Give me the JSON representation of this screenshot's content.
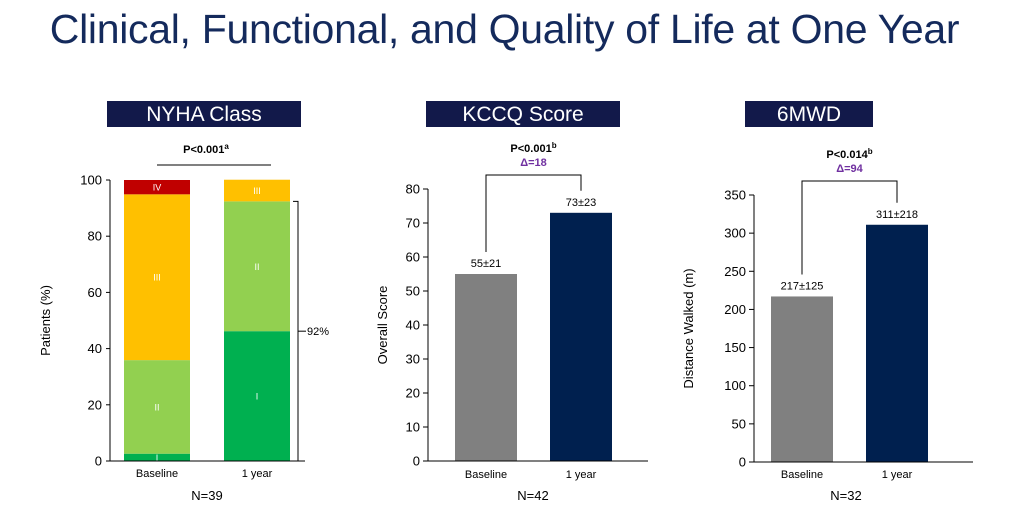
{
  "title": "Clinical, Functional, and Quality of Life at One Year",
  "colors": {
    "title": "#142a5c",
    "header_bg": "#12194a",
    "baseline_bar": "#808080",
    "oneyear_bar": "#00204f",
    "delta_text": "#7030a0",
    "class_I": "#00b050",
    "class_II": "#92d050",
    "class_III": "#ffc000",
    "class_IV": "#c00000"
  },
  "chart_data": [
    {
      "id": "nyha",
      "type": "bar",
      "stacked": true,
      "header": "NYHA Class",
      "categories": [
        "Baseline",
        "1 year"
      ],
      "series": [
        {
          "name": "I",
          "values": [
            2.6,
            46.2
          ]
        },
        {
          "name": "II",
          "values": [
            33.3,
            46.2
          ]
        },
        {
          "name": "III",
          "values": [
            59.0,
            7.7
          ]
        },
        {
          "name": "IV",
          "values": [
            5.1,
            0
          ]
        }
      ],
      "ylabel": "Patients (%)",
      "ylim": [
        0,
        100
      ],
      "yticks": [
        0,
        20,
        40,
        60,
        80,
        100
      ],
      "pvalue": "P<0.001",
      "pvalue_sup": "a",
      "bracket_label": "92%",
      "n_label": "N=39"
    },
    {
      "id": "kccq",
      "type": "bar",
      "header": "KCCQ Score",
      "categories": [
        "Baseline",
        "1 year"
      ],
      "values": [
        55,
        73
      ],
      "value_labels": [
        "55±21",
        "73±23"
      ],
      "ylabel": "Overall Score",
      "ylim": [
        0,
        80
      ],
      "yticks": [
        0,
        10,
        20,
        30,
        40,
        50,
        60,
        70,
        80
      ],
      "pvalue": "P<0.001",
      "pvalue_sup": "b",
      "delta": "Δ=18",
      "n_label": "N=42"
    },
    {
      "id": "6mwd",
      "type": "bar",
      "header": "6MWD",
      "categories": [
        "Baseline",
        "1 year"
      ],
      "values": [
        217,
        311
      ],
      "value_labels": [
        "217±125",
        "311±218"
      ],
      "ylabel": "Distance Walked (m)",
      "ylim": [
        0,
        350
      ],
      "yticks": [
        0,
        50,
        100,
        150,
        200,
        250,
        300,
        350
      ],
      "pvalue": "P<0.014",
      "pvalue_sup": "b",
      "delta": "Δ=94",
      "n_label": "N=32"
    }
  ]
}
